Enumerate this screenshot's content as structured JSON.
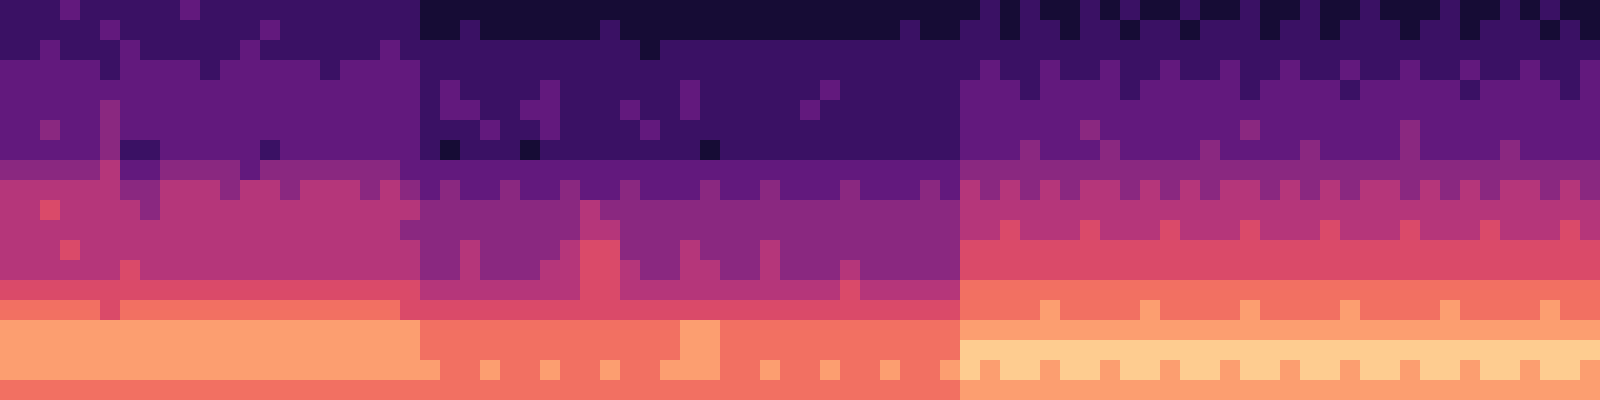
{
  "chart_data": {
    "type": "heatmap",
    "tick_labels": false,
    "color_range": [
      0,
      10
    ],
    "cells": [
      [
        2,
        2,
        2,
        3,
        2,
        2,
        2,
        2,
        2,
        3,
        2,
        2,
        2,
        2,
        2,
        2,
        2,
        2,
        2,
        2,
        2,
        1,
        1,
        1,
        1,
        1,
        1,
        1,
        1,
        1,
        1,
        1,
        1,
        1,
        1,
        1,
        1,
        1,
        1,
        1,
        1,
        1,
        1,
        1,
        1,
        1,
        1,
        1,
        1,
        2,
        1,
        2,
        1,
        1,
        2,
        1,
        2,
        1,
        1,
        2,
        1,
        1,
        2,
        1,
        1,
        2,
        1,
        1,
        2,
        1,
        1,
        1,
        2,
        1,
        1,
        2,
        1,
        2,
        1,
        1
      ],
      [
        2,
        2,
        2,
        2,
        2,
        3,
        2,
        2,
        2,
        2,
        2,
        2,
        2,
        3,
        2,
        2,
        2,
        2,
        2,
        2,
        2,
        1,
        1,
        2,
        1,
        1,
        1,
        1,
        1,
        1,
        2,
        1,
        1,
        1,
        1,
        1,
        1,
        1,
        1,
        1,
        1,
        1,
        1,
        1,
        1,
        2,
        1,
        1,
        2,
        2,
        1,
        2,
        2,
        1,
        2,
        2,
        1,
        2,
        2,
        1,
        2,
        2,
        2,
        1,
        2,
        2,
        1,
        2,
        2,
        2,
        1,
        2,
        2,
        1,
        2,
        2,
        2,
        1,
        2,
        1
      ],
      [
        2,
        2,
        3,
        2,
        2,
        2,
        3,
        2,
        2,
        2,
        2,
        2,
        3,
        2,
        2,
        2,
        2,
        2,
        2,
        3,
        2,
        2,
        2,
        2,
        2,
        2,
        2,
        2,
        2,
        2,
        2,
        2,
        1,
        2,
        2,
        2,
        2,
        2,
        2,
        2,
        2,
        2,
        2,
        2,
        2,
        2,
        2,
        2,
        2,
        2,
        2,
        2,
        2,
        2,
        2,
        2,
        2,
        2,
        2,
        2,
        2,
        2,
        2,
        2,
        2,
        2,
        2,
        2,
        2,
        2,
        2,
        2,
        2,
        2,
        2,
        2,
        2,
        2,
        2,
        2
      ],
      [
        3,
        3,
        3,
        3,
        3,
        2,
        3,
        3,
        3,
        3,
        2,
        3,
        3,
        3,
        3,
        3,
        2,
        3,
        3,
        3,
        3,
        2,
        2,
        2,
        2,
        2,
        2,
        2,
        2,
        2,
        2,
        2,
        2,
        2,
        2,
        2,
        2,
        2,
        2,
        2,
        2,
        2,
        2,
        2,
        2,
        2,
        2,
        2,
        2,
        3,
        2,
        2,
        3,
        2,
        2,
        3,
        2,
        2,
        3,
        2,
        2,
        3,
        2,
        2,
        3,
        2,
        2,
        3,
        2,
        2,
        3,
        2,
        2,
        3,
        2,
        2,
        3,
        2,
        2,
        3
      ],
      [
        3,
        3,
        3,
        3,
        3,
        3,
        3,
        3,
        3,
        3,
        3,
        3,
        3,
        3,
        3,
        3,
        3,
        3,
        3,
        3,
        3,
        2,
        3,
        2,
        2,
        2,
        2,
        3,
        2,
        2,
        2,
        2,
        2,
        2,
        3,
        2,
        2,
        2,
        2,
        2,
        2,
        3,
        2,
        2,
        2,
        2,
        2,
        2,
        3,
        3,
        3,
        2,
        3,
        3,
        3,
        3,
        2,
        3,
        3,
        3,
        3,
        3,
        2,
        3,
        3,
        3,
        3,
        2,
        3,
        3,
        3,
        3,
        3,
        2,
        3,
        3,
        3,
        3,
        2,
        3
      ],
      [
        3,
        3,
        3,
        3,
        3,
        4,
        3,
        3,
        3,
        3,
        3,
        3,
        3,
        3,
        3,
        3,
        3,
        3,
        3,
        3,
        3,
        2,
        3,
        3,
        2,
        2,
        3,
        3,
        2,
        2,
        2,
        3,
        2,
        2,
        3,
        2,
        2,
        2,
        2,
        2,
        3,
        2,
        2,
        2,
        2,
        2,
        2,
        2,
        3,
        3,
        3,
        3,
        3,
        3,
        3,
        3,
        3,
        3,
        3,
        3,
        3,
        3,
        3,
        3,
        3,
        3,
        3,
        3,
        3,
        3,
        3,
        3,
        3,
        3,
        3,
        3,
        3,
        3,
        3,
        3
      ],
      [
        3,
        3,
        4,
        3,
        3,
        4,
        3,
        3,
        3,
        3,
        3,
        3,
        3,
        3,
        3,
        3,
        3,
        3,
        3,
        3,
        3,
        2,
        2,
        2,
        3,
        2,
        2,
        3,
        2,
        2,
        2,
        2,
        3,
        2,
        2,
        2,
        2,
        2,
        2,
        2,
        2,
        2,
        2,
        2,
        2,
        2,
        2,
        2,
        3,
        3,
        3,
        3,
        3,
        3,
        4,
        3,
        3,
        3,
        3,
        3,
        3,
        3,
        4,
        3,
        3,
        3,
        3,
        3,
        3,
        3,
        4,
        3,
        3,
        3,
        3,
        3,
        3,
        3,
        3,
        3
      ],
      [
        3,
        3,
        3,
        3,
        3,
        4,
        2,
        2,
        3,
        3,
        3,
        3,
        3,
        2,
        3,
        3,
        3,
        3,
        3,
        3,
        3,
        2,
        1,
        2,
        2,
        2,
        1,
        2,
        2,
        2,
        2,
        2,
        2,
        2,
        2,
        1,
        2,
        2,
        2,
        2,
        2,
        2,
        2,
        2,
        2,
        2,
        2,
        2,
        3,
        3,
        3,
        4,
        3,
        3,
        3,
        4,
        3,
        3,
        3,
        3,
        4,
        3,
        3,
        3,
        3,
        4,
        3,
        3,
        3,
        3,
        4,
        3,
        3,
        3,
        3,
        4,
        3,
        3,
        3,
        3
      ],
      [
        4,
        4,
        4,
        4,
        4,
        5,
        3,
        3,
        4,
        4,
        4,
        4,
        3,
        4,
        4,
        4,
        4,
        4,
        4,
        4,
        3,
        3,
        3,
        3,
        3,
        3,
        3,
        3,
        3,
        3,
        3,
        3,
        3,
        3,
        3,
        3,
        3,
        3,
        3,
        3,
        3,
        3,
        3,
        3,
        3,
        3,
        3,
        3,
        4,
        4,
        4,
        4,
        4,
        4,
        4,
        4,
        4,
        4,
        4,
        4,
        4,
        4,
        4,
        4,
        4,
        4,
        4,
        4,
        4,
        4,
        4,
        4,
        4,
        4,
        4,
        4,
        4,
        4,
        4,
        4
      ],
      [
        5,
        5,
        5,
        5,
        5,
        5,
        4,
        4,
        5,
        5,
        5,
        4,
        5,
        5,
        4,
        5,
        5,
        5,
        4,
        5,
        4,
        3,
        4,
        3,
        3,
        4,
        3,
        3,
        4,
        3,
        3,
        4,
        3,
        3,
        3,
        4,
        3,
        3,
        4,
        3,
        3,
        3,
        4,
        3,
        3,
        3,
        4,
        3,
        5,
        4,
        5,
        4,
        5,
        4,
        5,
        5,
        4,
        5,
        4,
        5,
        4,
        5,
        5,
        4,
        5,
        4,
        5,
        4,
        5,
        5,
        4,
        5,
        4,
        5,
        4,
        5,
        5,
        4,
        5,
        4
      ],
      [
        5,
        5,
        6,
        5,
        5,
        5,
        5,
        4,
        5,
        5,
        5,
        5,
        5,
        5,
        5,
        5,
        5,
        5,
        5,
        5,
        5,
        4,
        4,
        4,
        4,
        4,
        4,
        4,
        4,
        5,
        4,
        4,
        4,
        4,
        4,
        4,
        4,
        4,
        4,
        4,
        4,
        4,
        4,
        4,
        4,
        4,
        4,
        4,
        5,
        5,
        5,
        5,
        5,
        5,
        5,
        5,
        5,
        5,
        5,
        5,
        5,
        5,
        5,
        5,
        5,
        5,
        5,
        5,
        5,
        5,
        5,
        5,
        5,
        5,
        5,
        5,
        5,
        5,
        5,
        5
      ],
      [
        5,
        5,
        5,
        5,
        5,
        5,
        5,
        5,
        5,
        5,
        5,
        5,
        5,
        5,
        5,
        5,
        5,
        5,
        5,
        5,
        4,
        4,
        4,
        4,
        4,
        4,
        4,
        4,
        4,
        5,
        5,
        4,
        4,
        4,
        4,
        4,
        4,
        4,
        4,
        4,
        4,
        4,
        4,
        4,
        4,
        4,
        4,
        4,
        5,
        5,
        6,
        5,
        5,
        5,
        6,
        5,
        5,
        5,
        6,
        5,
        5,
        5,
        6,
        5,
        5,
        5,
        6,
        5,
        5,
        5,
        6,
        5,
        5,
        5,
        6,
        5,
        5,
        5,
        6,
        5
      ],
      [
        5,
        5,
        5,
        6,
        5,
        5,
        5,
        5,
        5,
        5,
        5,
        5,
        5,
        5,
        5,
        5,
        5,
        5,
        5,
        5,
        5,
        4,
        4,
        5,
        4,
        4,
        4,
        4,
        5,
        6,
        6,
        4,
        4,
        4,
        5,
        4,
        4,
        4,
        5,
        4,
        4,
        4,
        4,
        4,
        4,
        4,
        4,
        4,
        6,
        6,
        6,
        6,
        6,
        6,
        6,
        6,
        6,
        6,
        6,
        6,
        6,
        6,
        6,
        6,
        6,
        6,
        6,
        6,
        6,
        6,
        6,
        6,
        6,
        6,
        6,
        6,
        6,
        6,
        6,
        6
      ],
      [
        5,
        5,
        5,
        5,
        5,
        5,
        6,
        5,
        5,
        5,
        5,
        5,
        5,
        5,
        5,
        5,
        5,
        5,
        5,
        5,
        5,
        4,
        4,
        5,
        4,
        4,
        4,
        5,
        5,
        6,
        6,
        5,
        4,
        4,
        5,
        5,
        4,
        4,
        5,
        4,
        4,
        4,
        5,
        4,
        4,
        4,
        4,
        4,
        6,
        6,
        6,
        6,
        6,
        6,
        6,
        6,
        6,
        6,
        6,
        6,
        6,
        6,
        6,
        6,
        6,
        6,
        6,
        6,
        6,
        6,
        6,
        6,
        6,
        6,
        6,
        6,
        6,
        6,
        6,
        6
      ],
      [
        6,
        6,
        6,
        6,
        6,
        6,
        6,
        6,
        6,
        6,
        6,
        6,
        6,
        6,
        6,
        6,
        6,
        6,
        6,
        6,
        6,
        5,
        5,
        5,
        5,
        5,
        5,
        5,
        5,
        6,
        6,
        5,
        5,
        5,
        5,
        5,
        5,
        5,
        5,
        5,
        5,
        5,
        6,
        5,
        5,
        5,
        5,
        5,
        7,
        7,
        7,
        7,
        7,
        7,
        7,
        7,
        7,
        7,
        7,
        7,
        7,
        7,
        7,
        7,
        7,
        7,
        7,
        7,
        7,
        7,
        7,
        7,
        7,
        7,
        7,
        7,
        7,
        7,
        7,
        7
      ],
      [
        7,
        7,
        7,
        7,
        7,
        6,
        7,
        7,
        7,
        7,
        7,
        7,
        7,
        7,
        7,
        7,
        7,
        7,
        7,
        7,
        6,
        6,
        6,
        6,
        6,
        6,
        6,
        6,
        6,
        6,
        6,
        6,
        6,
        6,
        6,
        6,
        6,
        6,
        6,
        6,
        6,
        6,
        6,
        6,
        6,
        6,
        6,
        6,
        7,
        7,
        7,
        7,
        8,
        7,
        7,
        7,
        7,
        8,
        7,
        7,
        7,
        7,
        8,
        7,
        7,
        7,
        7,
        8,
        7,
        7,
        7,
        7,
        8,
        7,
        7,
        7,
        7,
        8,
        7,
        7
      ],
      [
        8,
        8,
        8,
        8,
        8,
        8,
        8,
        8,
        8,
        8,
        8,
        8,
        8,
        8,
        8,
        8,
        8,
        8,
        8,
        8,
        8,
        7,
        7,
        7,
        7,
        7,
        7,
        7,
        7,
        7,
        7,
        7,
        7,
        7,
        8,
        8,
        7,
        7,
        7,
        7,
        7,
        7,
        7,
        7,
        7,
        7,
        7,
        7,
        8,
        8,
        8,
        8,
        8,
        8,
        8,
        8,
        8,
        8,
        8,
        8,
        8,
        8,
        8,
        8,
        8,
        8,
        8,
        8,
        8,
        8,
        8,
        8,
        8,
        8,
        8,
        8,
        8,
        8,
        8,
        8
      ],
      [
        8,
        8,
        8,
        8,
        8,
        8,
        8,
        8,
        8,
        8,
        8,
        8,
        8,
        8,
        8,
        8,
        8,
        8,
        8,
        8,
        8,
        7,
        7,
        7,
        7,
        7,
        7,
        7,
        7,
        7,
        7,
        7,
        7,
        7,
        8,
        8,
        7,
        7,
        7,
        7,
        7,
        7,
        7,
        7,
        7,
        7,
        7,
        7,
        9,
        9,
        9,
        9,
        9,
        9,
        9,
        9,
        9,
        9,
        9,
        9,
        9,
        9,
        9,
        9,
        9,
        9,
        9,
        9,
        9,
        9,
        9,
        9,
        9,
        9,
        9,
        9,
        9,
        9,
        9,
        9
      ],
      [
        8,
        8,
        8,
        8,
        8,
        8,
        8,
        8,
        8,
        8,
        8,
        8,
        8,
        8,
        8,
        8,
        8,
        8,
        8,
        8,
        8,
        8,
        7,
        7,
        8,
        7,
        7,
        8,
        7,
        7,
        8,
        7,
        7,
        8,
        8,
        8,
        7,
        7,
        8,
        7,
        7,
        8,
        7,
        7,
        8,
        7,
        7,
        8,
        9,
        8,
        9,
        9,
        8,
        9,
        9,
        8,
        9,
        9,
        8,
        9,
        9,
        8,
        9,
        9,
        8,
        9,
        9,
        8,
        9,
        9,
        8,
        9,
        9,
        8,
        9,
        9,
        8,
        9,
        9,
        8
      ],
      [
        7,
        7,
        7,
        7,
        7,
        7,
        7,
        7,
        7,
        7,
        7,
        7,
        7,
        7,
        7,
        7,
        7,
        7,
        7,
        7,
        7,
        7,
        7,
        7,
        7,
        7,
        7,
        7,
        7,
        7,
        7,
        7,
        7,
        7,
        7,
        7,
        7,
        7,
        7,
        7,
        7,
        7,
        7,
        7,
        7,
        7,
        7,
        7,
        8,
        8,
        8,
        8,
        8,
        8,
        8,
        8,
        8,
        8,
        8,
        8,
        8,
        8,
        8,
        8,
        8,
        8,
        8,
        8,
        8,
        8,
        8,
        8,
        8,
        8,
        8,
        8,
        8,
        8,
        8,
        8
      ]
    ]
  }
}
